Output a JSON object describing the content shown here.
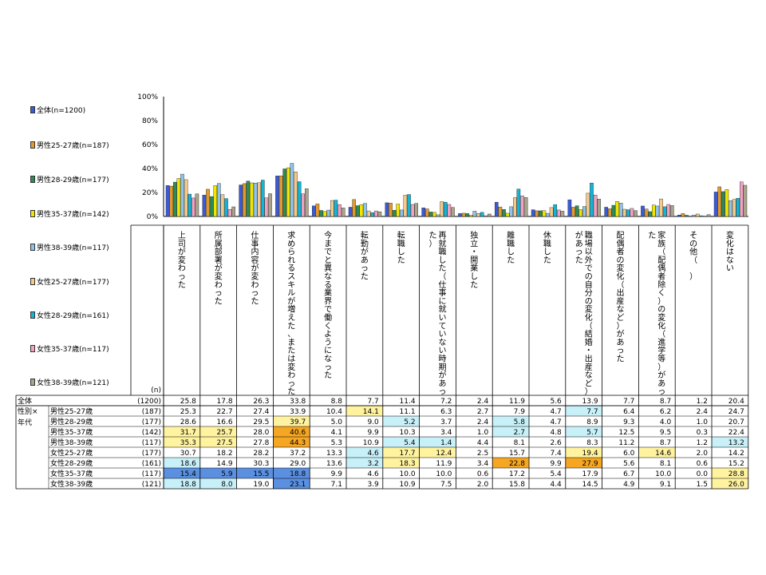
{
  "chart_data": {
    "type": "bar",
    "yaxis_ticks": [
      "100%",
      "80%",
      "60%",
      "40%",
      "20%",
      "0%"
    ],
    "ylim": [
      0,
      100
    ],
    "n_header": "(n)",
    "row_group_label": "性別×年代",
    "categories": [
      "上司が変わった",
      "所属部署が変わった",
      "仕事内容が変わった",
      "求められるスキルが増えた、または変わった",
      "今までと異なる業界で働くようになった",
      "転勤があった",
      "転職した",
      "再就職した（仕事に就いていない時期があった）",
      "独立・開業した",
      "離職した",
      "休職した",
      "職場以外での自分の変化（結婚・出産など）があった",
      "配偶者の変化（出産など）があった",
      "家族（配偶者除く）の変化（進学等）があった",
      "その他（　）",
      "変化はない"
    ],
    "series": [
      {
        "name": "全体",
        "legend": "全体(n=1200)",
        "row_label": "全体",
        "n": "(1200)",
        "color": "#3b5bd6",
        "values": [
          25.8,
          17.8,
          26.3,
          33.8,
          8.8,
          7.7,
          11.4,
          7.2,
          2.4,
          11.9,
          5.6,
          13.9,
          7.7,
          8.7,
          1.2,
          20.4
        ]
      },
      {
        "name": "男性25-27歳",
        "legend": "男性25-27歳(n=187)",
        "row_label": "男性25-27歳",
        "n": "(187)",
        "color": "#e39a2c",
        "values": [
          25.3,
          22.7,
          27.4,
          33.9,
          10.4,
          14.1,
          11.1,
          6.3,
          2.7,
          7.9,
          4.7,
          7.7,
          6.4,
          6.2,
          2.4,
          24.7
        ]
      },
      {
        "name": "男性28-29歳",
        "legend": "男性28-29歳(n=177)",
        "row_label": "男性28-29歳",
        "n": "(177)",
        "color": "#2e8b57",
        "values": [
          28.6,
          16.6,
          29.5,
          39.7,
          5.0,
          9.0,
          5.2,
          3.7,
          2.4,
          5.8,
          4.7,
          8.9,
          9.3,
          4.0,
          1.0,
          20.7
        ]
      },
      {
        "name": "男性35-37歳",
        "legend": "男性35-37歳(n=142)",
        "row_label": "男性35-37歳",
        "n": "(142)",
        "color": "#f2e600",
        "values": [
          31.7,
          25.7,
          28.0,
          40.6,
          4.1,
          9.9,
          10.3,
          3.4,
          1.0,
          2.7,
          4.8,
          5.7,
          12.5,
          9.5,
          0.3,
          22.4
        ]
      },
      {
        "name": "男性38-39歳",
        "legend": "男性38-39歳(n=117)",
        "row_label": "男性38-39歳",
        "n": "(117)",
        "color": "#8fc3ea",
        "values": [
          35.3,
          27.5,
          27.8,
          44.3,
          5.3,
          10.9,
          5.4,
          1.4,
          4.4,
          8.1,
          2.6,
          8.3,
          11.2,
          8.7,
          1.2,
          13.2
        ]
      },
      {
        "name": "女性25-27歳",
        "legend": "女性25-27歳(n=177)",
        "row_label": "女性25-27歳",
        "n": "(177)",
        "color": "#f4c98a",
        "values": [
          30.7,
          18.2,
          28.2,
          37.2,
          13.3,
          4.6,
          17.7,
          12.4,
          2.5,
          15.7,
          7.4,
          19.4,
          6.0,
          14.6,
          2.0,
          14.2
        ]
      },
      {
        "name": "女性28-29歳",
        "legend": "女性28-29歳(n=161)",
        "row_label": "女性28-29歳",
        "n": "(161)",
        "color": "#12b5d6",
        "values": [
          18.6,
          14.9,
          30.3,
          29.0,
          13.6,
          3.2,
          18.3,
          11.9,
          3.4,
          22.8,
          9.9,
          27.9,
          5.6,
          8.1,
          0.6,
          15.2
        ]
      },
      {
        "name": "女性35-37歳",
        "legend": "女性35-37歳(n=117)",
        "row_label": "女性35-37歳",
        "n": "(117)",
        "color": "#f0a3c2",
        "values": [
          15.4,
          5.9,
          15.5,
          18.8,
          9.9,
          4.6,
          10.0,
          10.0,
          0.6,
          17.2,
          5.4,
          17.9,
          6.7,
          10.0,
          0.0,
          28.8
        ]
      },
      {
        "name": "女性38-39歳",
        "legend": "女性38-39歳(n=121)",
        "row_label": "女性38-39歳",
        "n": "(121)",
        "color": "#a9a48c",
        "values": [
          18.8,
          8.0,
          19.0,
          23.1,
          7.1,
          3.9,
          10.9,
          7.5,
          2.0,
          15.8,
          4.4,
          14.5,
          4.9,
          9.1,
          1.5,
          26.0
        ]
      }
    ],
    "highlights": {
      "strong_plus": "#f5a623",
      "plus": "#fff3a0",
      "minus": "#c8f0f8",
      "strong_minus": "#5b8fe0",
      "cells": {
        "1": {
          "5": "plus",
          "11": "minus"
        },
        "2": {
          "3": "plus",
          "6": "minus",
          "9": "minus"
        },
        "3": {
          "0": "plus",
          "1": "plus",
          "3": "strong_plus",
          "9": "minus",
          "11": "minus"
        },
        "4": {
          "0": "plus",
          "1": "plus",
          "3": "strong_plus",
          "6": "minus",
          "7": "minus",
          "15": "minus"
        },
        "5": {
          "5": "minus",
          "6": "plus",
          "7": "plus",
          "11": "plus",
          "13": "plus"
        },
        "6": {
          "0": "minus",
          "5": "minus",
          "6": "plus",
          "9": "strong_plus",
          "11": "strong_plus"
        },
        "7": {
          "0": "strong_minus",
          "1": "strong_minus",
          "2": "strong_minus",
          "3": "strong_minus",
          "15": "plus"
        },
        "8": {
          "0": "minus",
          "1": "minus",
          "3": "strong_minus",
          "15": "plus"
        }
      }
    }
  }
}
